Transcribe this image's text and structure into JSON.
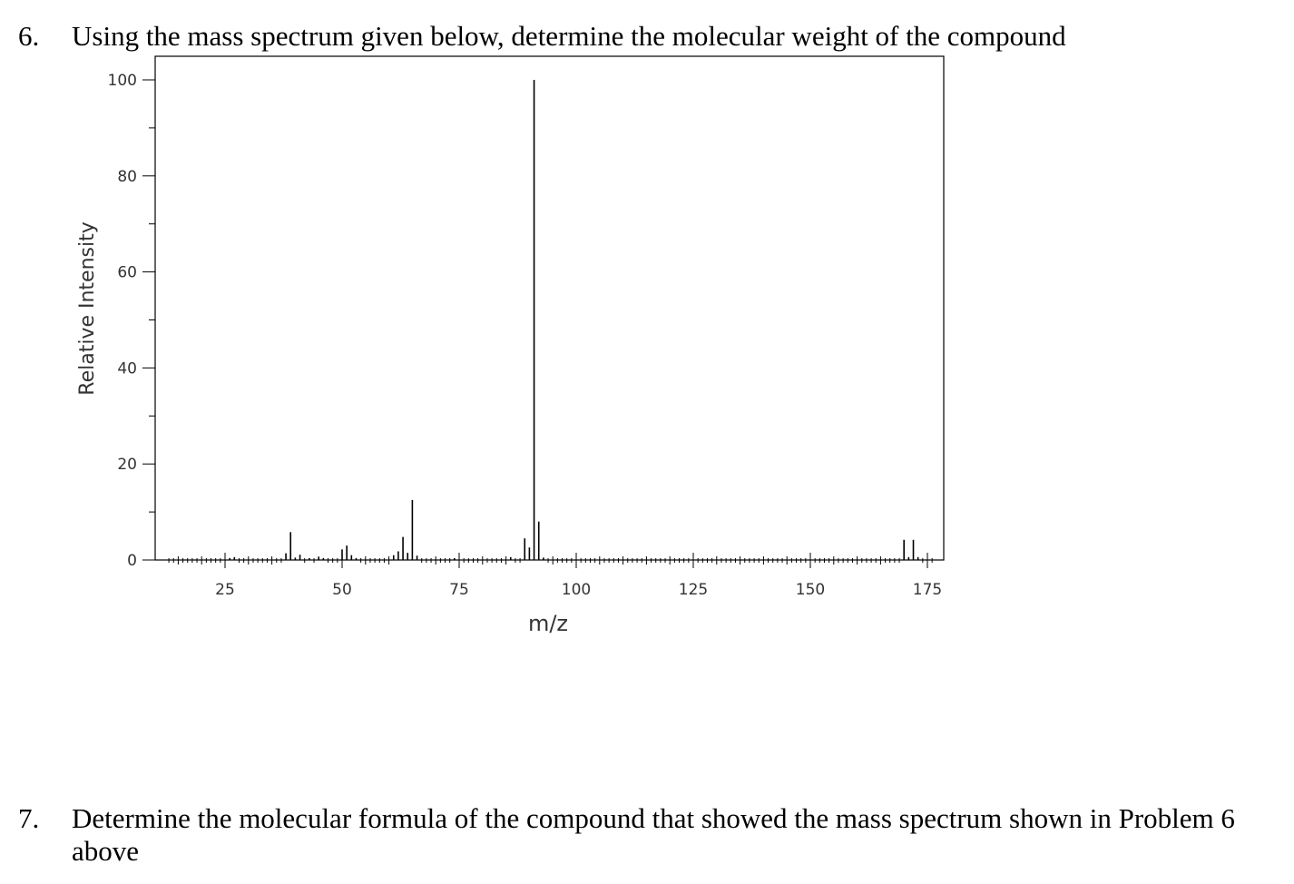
{
  "question6": {
    "number": "6.",
    "text": "Using the mass spectrum given below, determine the molecular weight of the compound"
  },
  "question7": {
    "number": "7.",
    "text": "Determine the molecular formula of the compound that showed the mass spectrum shown in Problem 6 above"
  },
  "chart_data": {
    "type": "bar",
    "title": "",
    "xlabel": "m/z",
    "ylabel": "Relative Intensity",
    "xlim": [
      12,
      180
    ],
    "ylim": [
      0,
      100
    ],
    "x_ticks": [
      25,
      50,
      75,
      100,
      125,
      150,
      175
    ],
    "y_ticks": [
      0,
      20,
      40,
      60,
      80,
      100
    ],
    "grid": false,
    "legend": "none",
    "peaks": [
      {
        "mz": 26,
        "intensity": 0.4
      },
      {
        "mz": 27,
        "intensity": 0.6
      },
      {
        "mz": 38,
        "intensity": 1.4
      },
      {
        "mz": 39,
        "intensity": 5.8
      },
      {
        "mz": 40,
        "intensity": 0.5
      },
      {
        "mz": 41,
        "intensity": 1.1
      },
      {
        "mz": 43,
        "intensity": 0.4
      },
      {
        "mz": 45,
        "intensity": 0.7
      },
      {
        "mz": 46,
        "intensity": 0.4
      },
      {
        "mz": 50,
        "intensity": 2.2
      },
      {
        "mz": 51,
        "intensity": 3.0
      },
      {
        "mz": 52,
        "intensity": 1.0
      },
      {
        "mz": 53,
        "intensity": 0.4
      },
      {
        "mz": 61,
        "intensity": 1.0
      },
      {
        "mz": 62,
        "intensity": 1.8
      },
      {
        "mz": 63,
        "intensity": 4.8
      },
      {
        "mz": 64,
        "intensity": 1.5
      },
      {
        "mz": 65,
        "intensity": 12.5
      },
      {
        "mz": 66,
        "intensity": 0.9
      },
      {
        "mz": 74,
        "intensity": 0.4
      },
      {
        "mz": 86,
        "intensity": 0.6
      },
      {
        "mz": 89,
        "intensity": 4.5
      },
      {
        "mz": 90,
        "intensity": 2.6
      },
      {
        "mz": 91,
        "intensity": 100
      },
      {
        "mz": 92,
        "intensity": 8.0
      },
      {
        "mz": 93,
        "intensity": 0.5
      },
      {
        "mz": 170,
        "intensity": 4.2
      },
      {
        "mz": 171,
        "intensity": 0.6
      },
      {
        "mz": 172,
        "intensity": 4.2
      },
      {
        "mz": 173,
        "intensity": 0.6
      }
    ]
  },
  "style": {
    "axis_color": "#000000",
    "peak_color": "#000000",
    "label_color": "#333333"
  }
}
